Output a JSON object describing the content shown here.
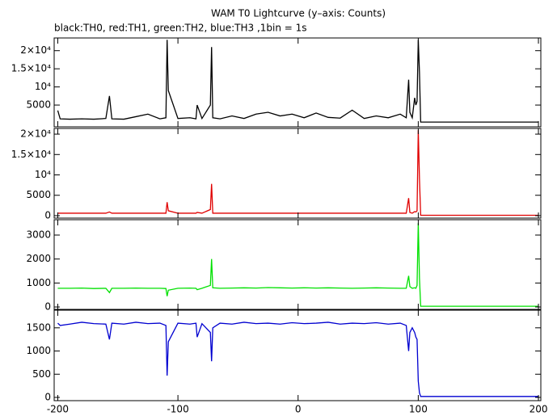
{
  "chart_data": {
    "type": "line",
    "title": "WAM T0 Lightcurve (y–axis: Counts)",
    "subtitle": "black:TH0, red:TH1, green:TH2, blue:TH3 ,1bin = 1s",
    "x": [
      -200,
      -198,
      -190,
      -180,
      -170,
      -160,
      -157,
      -155,
      -145,
      -135,
      -125,
      -115,
      -110,
      -109,
      -108,
      -100,
      -90,
      -85,
      -84,
      -80,
      -73,
      -72,
      -71,
      -65,
      -55,
      -45,
      -35,
      -25,
      -15,
      -5,
      5,
      15,
      25,
      35,
      45,
      55,
      65,
      75,
      85,
      90,
      92,
      93,
      95,
      97,
      98,
      99,
      100,
      101,
      102,
      110,
      120,
      130,
      140,
      150,
      160,
      170,
      180,
      190,
      200
    ],
    "xlim": [
      -203,
      202
    ],
    "xticks": [
      -200,
      -100,
      0,
      100,
      200
    ],
    "series": [
      {
        "color": "#000000",
        "ylim": [
          -1000,
          23500
        ],
        "yticks": [
          5000,
          {
            "value": 10000,
            "label": "10⁴"
          },
          {
            "value": 15000,
            "label": "1.5×10⁴"
          },
          {
            "value": 20000,
            "label": "2×10⁴"
          }
        ],
        "values": [
          3500,
          1200,
          1100,
          1200,
          1100,
          1300,
          7500,
          1200,
          1100,
          1800,
          2500,
          1200,
          1500,
          23000,
          9000,
          1300,
          1500,
          1200,
          5000,
          1300,
          5000,
          21000,
          1500,
          1200,
          2000,
          1300,
          2500,
          3000,
          2000,
          2500,
          1500,
          2800,
          1600,
          1400,
          3600,
          1300,
          2000,
          1500,
          2500,
          1500,
          12000,
          3000,
          1500,
          7000,
          5000,
          6000,
          23000,
          14000,
          300,
          300,
          300,
          300,
          300,
          300,
          300,
          300,
          300,
          300,
          300
        ]
      },
      {
        "color": "#e00000",
        "ylim": [
          -600,
          21400
        ],
        "yticks": [
          0,
          5000,
          {
            "value": 10000,
            "label": "10⁴"
          },
          {
            "value": 15000,
            "label": "1.5×10⁴"
          },
          {
            "value": 20000,
            "label": "2×10⁴"
          }
        ],
        "values": [
          600,
          600,
          600,
          600,
          600,
          600,
          900,
          600,
          600,
          600,
          600,
          600,
          600,
          3300,
          1200,
          600,
          600,
          600,
          800,
          600,
          1500,
          7800,
          600,
          600,
          600,
          600,
          600,
          600,
          600,
          600,
          600,
          600,
          600,
          600,
          600,
          600,
          600,
          600,
          600,
          600,
          4300,
          800,
          600,
          1000,
          900,
          1200,
          21000,
          9000,
          100,
          100,
          100,
          100,
          100,
          100,
          100,
          100,
          100,
          100,
          100
        ]
      },
      {
        "color": "#00e000",
        "ylim": [
          -100,
          3640
        ],
        "yticks": [
          0,
          1000,
          2000,
          3000
        ],
        "values": [
          780,
          780,
          780,
          790,
          770,
          780,
          600,
          780,
          780,
          790,
          780,
          780,
          770,
          450,
          700,
          780,
          790,
          780,
          720,
          780,
          900,
          2000,
          800,
          780,
          790,
          800,
          790,
          810,
          800,
          790,
          800,
          790,
          800,
          790,
          780,
          790,
          800,
          790,
          780,
          780,
          1300,
          850,
          780,
          800,
          780,
          900,
          3500,
          1200,
          30,
          30,
          30,
          30,
          30,
          30,
          30,
          30,
          30,
          30,
          30
        ]
      },
      {
        "color": "#0000d0",
        "ylim": [
          -70,
          1880
        ],
        "yticks": [
          0,
          500,
          1000,
          1500
        ],
        "values": [
          1600,
          1550,
          1580,
          1620,
          1590,
          1580,
          1250,
          1600,
          1580,
          1620,
          1590,
          1600,
          1550,
          470,
          1200,
          1600,
          1580,
          1600,
          1300,
          1590,
          1400,
          780,
          1500,
          1600,
          1580,
          1620,
          1590,
          1600,
          1580,
          1610,
          1590,
          1600,
          1620,
          1580,
          1600,
          1590,
          1610,
          1580,
          1600,
          1550,
          1000,
          1400,
          1500,
          1400,
          1300,
          1250,
          350,
          100,
          20,
          20,
          20,
          20,
          20,
          20,
          20,
          20,
          20,
          20,
          20
        ]
      }
    ]
  }
}
